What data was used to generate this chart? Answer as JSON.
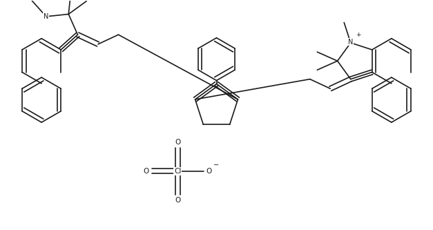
{
  "background": "#ffffff",
  "line_color": "#1a1a1a",
  "line_width": 1.2,
  "figsize": [
    6.27,
    3.33
  ],
  "dpi": 100,
  "xlim": [
    0,
    10
  ],
  "ylim": [
    0,
    5.3
  ]
}
